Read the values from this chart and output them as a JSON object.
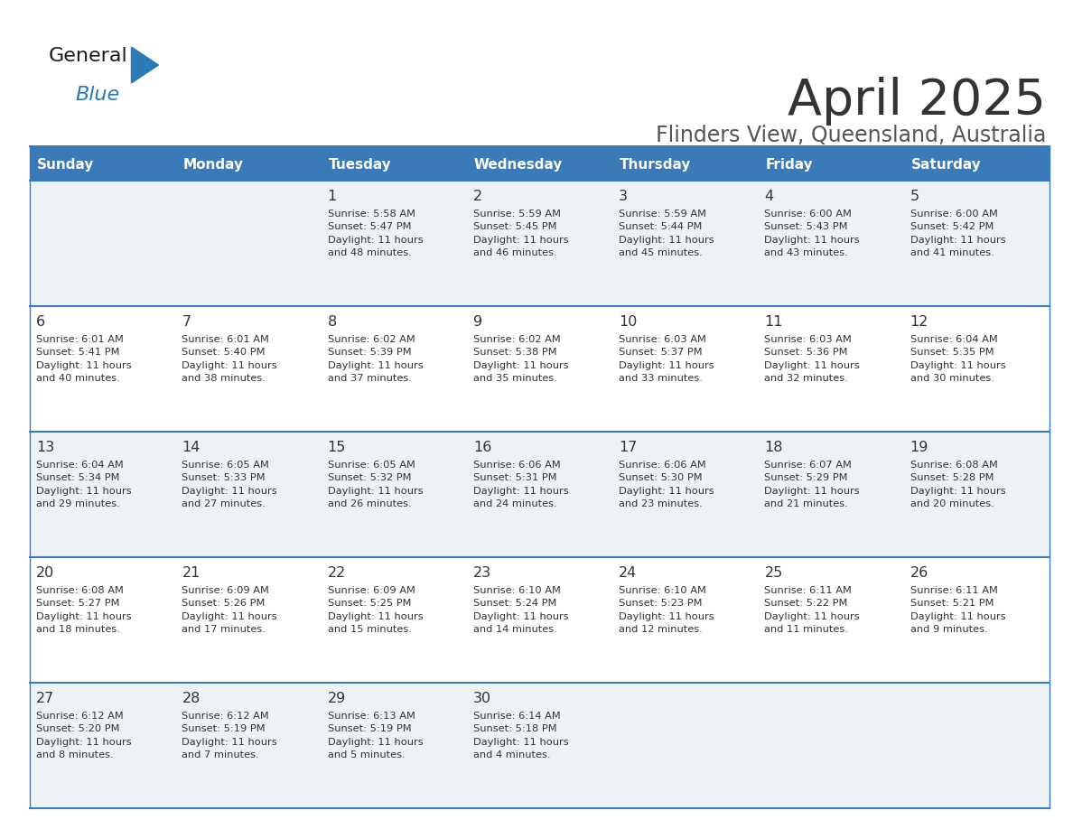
{
  "title": "April 2025",
  "subtitle": "Flinders View, Queensland, Australia",
  "title_color": "#333333",
  "subtitle_color": "#555555",
  "header_bg_color": "#3a7ab8",
  "header_text_color": "#ffffff",
  "row_even_color": "#eef2f7",
  "row_odd_color": "#ffffff",
  "cell_border_color": "#3a7ab8",
  "text_color": "#333333",
  "day_headers": [
    "Sunday",
    "Monday",
    "Tuesday",
    "Wednesday",
    "Thursday",
    "Friday",
    "Saturday"
  ],
  "weeks": [
    [
      {
        "day": "",
        "info": ""
      },
      {
        "day": "",
        "info": ""
      },
      {
        "day": "1",
        "info": "Sunrise: 5:58 AM\nSunset: 5:47 PM\nDaylight: 11 hours\nand 48 minutes."
      },
      {
        "day": "2",
        "info": "Sunrise: 5:59 AM\nSunset: 5:45 PM\nDaylight: 11 hours\nand 46 minutes."
      },
      {
        "day": "3",
        "info": "Sunrise: 5:59 AM\nSunset: 5:44 PM\nDaylight: 11 hours\nand 45 minutes."
      },
      {
        "day": "4",
        "info": "Sunrise: 6:00 AM\nSunset: 5:43 PM\nDaylight: 11 hours\nand 43 minutes."
      },
      {
        "day": "5",
        "info": "Sunrise: 6:00 AM\nSunset: 5:42 PM\nDaylight: 11 hours\nand 41 minutes."
      }
    ],
    [
      {
        "day": "6",
        "info": "Sunrise: 6:01 AM\nSunset: 5:41 PM\nDaylight: 11 hours\nand 40 minutes."
      },
      {
        "day": "7",
        "info": "Sunrise: 6:01 AM\nSunset: 5:40 PM\nDaylight: 11 hours\nand 38 minutes."
      },
      {
        "day": "8",
        "info": "Sunrise: 6:02 AM\nSunset: 5:39 PM\nDaylight: 11 hours\nand 37 minutes."
      },
      {
        "day": "9",
        "info": "Sunrise: 6:02 AM\nSunset: 5:38 PM\nDaylight: 11 hours\nand 35 minutes."
      },
      {
        "day": "10",
        "info": "Sunrise: 6:03 AM\nSunset: 5:37 PM\nDaylight: 11 hours\nand 33 minutes."
      },
      {
        "day": "11",
        "info": "Sunrise: 6:03 AM\nSunset: 5:36 PM\nDaylight: 11 hours\nand 32 minutes."
      },
      {
        "day": "12",
        "info": "Sunrise: 6:04 AM\nSunset: 5:35 PM\nDaylight: 11 hours\nand 30 minutes."
      }
    ],
    [
      {
        "day": "13",
        "info": "Sunrise: 6:04 AM\nSunset: 5:34 PM\nDaylight: 11 hours\nand 29 minutes."
      },
      {
        "day": "14",
        "info": "Sunrise: 6:05 AM\nSunset: 5:33 PM\nDaylight: 11 hours\nand 27 minutes."
      },
      {
        "day": "15",
        "info": "Sunrise: 6:05 AM\nSunset: 5:32 PM\nDaylight: 11 hours\nand 26 minutes."
      },
      {
        "day": "16",
        "info": "Sunrise: 6:06 AM\nSunset: 5:31 PM\nDaylight: 11 hours\nand 24 minutes."
      },
      {
        "day": "17",
        "info": "Sunrise: 6:06 AM\nSunset: 5:30 PM\nDaylight: 11 hours\nand 23 minutes."
      },
      {
        "day": "18",
        "info": "Sunrise: 6:07 AM\nSunset: 5:29 PM\nDaylight: 11 hours\nand 21 minutes."
      },
      {
        "day": "19",
        "info": "Sunrise: 6:08 AM\nSunset: 5:28 PM\nDaylight: 11 hours\nand 20 minutes."
      }
    ],
    [
      {
        "day": "20",
        "info": "Sunrise: 6:08 AM\nSunset: 5:27 PM\nDaylight: 11 hours\nand 18 minutes."
      },
      {
        "day": "21",
        "info": "Sunrise: 6:09 AM\nSunset: 5:26 PM\nDaylight: 11 hours\nand 17 minutes."
      },
      {
        "day": "22",
        "info": "Sunrise: 6:09 AM\nSunset: 5:25 PM\nDaylight: 11 hours\nand 15 minutes."
      },
      {
        "day": "23",
        "info": "Sunrise: 6:10 AM\nSunset: 5:24 PM\nDaylight: 11 hours\nand 14 minutes."
      },
      {
        "day": "24",
        "info": "Sunrise: 6:10 AM\nSunset: 5:23 PM\nDaylight: 11 hours\nand 12 minutes."
      },
      {
        "day": "25",
        "info": "Sunrise: 6:11 AM\nSunset: 5:22 PM\nDaylight: 11 hours\nand 11 minutes."
      },
      {
        "day": "26",
        "info": "Sunrise: 6:11 AM\nSunset: 5:21 PM\nDaylight: 11 hours\nand 9 minutes."
      }
    ],
    [
      {
        "day": "27",
        "info": "Sunrise: 6:12 AM\nSunset: 5:20 PM\nDaylight: 11 hours\nand 8 minutes."
      },
      {
        "day": "28",
        "info": "Sunrise: 6:12 AM\nSunset: 5:19 PM\nDaylight: 11 hours\nand 7 minutes."
      },
      {
        "day": "29",
        "info": "Sunrise: 6:13 AM\nSunset: 5:19 PM\nDaylight: 11 hours\nand 5 minutes."
      },
      {
        "day": "30",
        "info": "Sunrise: 6:14 AM\nSunset: 5:18 PM\nDaylight: 11 hours\nand 4 minutes."
      },
      {
        "day": "",
        "info": ""
      },
      {
        "day": "",
        "info": ""
      },
      {
        "day": "",
        "info": ""
      }
    ]
  ],
  "logo_general_color": "#1a1a1a",
  "logo_blue_color": "#2a7ab5",
  "logo_triangle_color": "#2a7ab5",
  "fig_width": 11.88,
  "fig_height": 9.18,
  "dpi": 100
}
